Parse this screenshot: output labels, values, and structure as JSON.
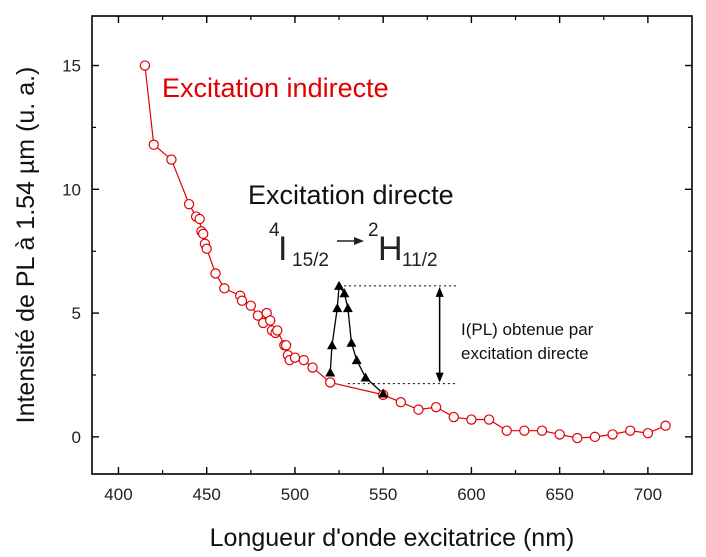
{
  "chart_data": {
    "type": "scatter",
    "xlabel": "Longueur d'onde excitatrice (nm)",
    "ylabel": "Intensité de PL à 1.54 µm (u. a.)",
    "xlim": [
      385,
      725
    ],
    "ylim": [
      -1.5,
      17
    ],
    "xticks": [
      400,
      450,
      500,
      550,
      600,
      650,
      700
    ],
    "yticks": [
      0,
      5,
      10,
      15
    ],
    "grid": false,
    "series": [
      {
        "name": "Excitation indirecte",
        "color": "#e00000",
        "marker": "open-circle",
        "points": [
          [
            415,
            15.0
          ],
          [
            420,
            11.8
          ],
          [
            430,
            11.2
          ],
          [
            440,
            9.4
          ],
          [
            444,
            8.9
          ],
          [
            446,
            8.8
          ],
          [
            447,
            8.3
          ],
          [
            448,
            8.2
          ],
          [
            449,
            7.8
          ],
          [
            450,
            7.6
          ],
          [
            455,
            6.6
          ],
          [
            460,
            6.0
          ],
          [
            469,
            5.7
          ],
          [
            470,
            5.5
          ],
          [
            475,
            5.3
          ],
          [
            479,
            4.9
          ],
          [
            482,
            4.6
          ],
          [
            484,
            5.0
          ],
          [
            486,
            4.7
          ],
          [
            487,
            4.3
          ],
          [
            489,
            4.2
          ],
          [
            490,
            4.3
          ],
          [
            494,
            3.7
          ],
          [
            495,
            3.7
          ],
          [
            496,
            3.3
          ],
          [
            497,
            3.1
          ],
          [
            500,
            3.2
          ],
          [
            505,
            3.1
          ],
          [
            510,
            2.8
          ],
          [
            520,
            2.2
          ],
          [
            550,
            1.7
          ],
          [
            560,
            1.4
          ],
          [
            570,
            1.1
          ],
          [
            580,
            1.2
          ],
          [
            590,
            0.8
          ],
          [
            600,
            0.7
          ],
          [
            610,
            0.7
          ],
          [
            620,
            0.25
          ],
          [
            630,
            0.25
          ],
          [
            640,
            0.25
          ],
          [
            650,
            0.1
          ],
          [
            660,
            -0.05
          ],
          [
            670,
            0.0
          ],
          [
            680,
            0.1
          ],
          [
            690,
            0.25
          ],
          [
            700,
            0.15
          ],
          [
            710,
            0.45
          ]
        ]
      },
      {
        "name": "Excitation directe",
        "color": "#000000",
        "marker": "filled-triangle",
        "points": [
          [
            520,
            2.6
          ],
          [
            521,
            3.7
          ],
          [
            524,
            5.2
          ],
          [
            525,
            6.1
          ],
          [
            528,
            5.8
          ],
          [
            530,
            5.2
          ],
          [
            532,
            3.8
          ],
          [
            535,
            3.1
          ],
          [
            540,
            2.4
          ],
          [
            550,
            1.75
          ]
        ]
      }
    ],
    "annotations": {
      "indirect_label": "Excitation indirecte",
      "direct_label": "Excitation directe",
      "transition": {
        "from_sup": "4",
        "from_base": "I",
        "from_sub": "15/2",
        "to_sup": "2",
        "to_base": "H",
        "to_sub": "11/2"
      },
      "arrow_note_line1": "I(PL) obtenue par",
      "arrow_note_line2": "excitation directe",
      "level_top": 6.1,
      "level_bottom": 2.15,
      "level_x_start": 525,
      "level_x_end": 593
    }
  }
}
